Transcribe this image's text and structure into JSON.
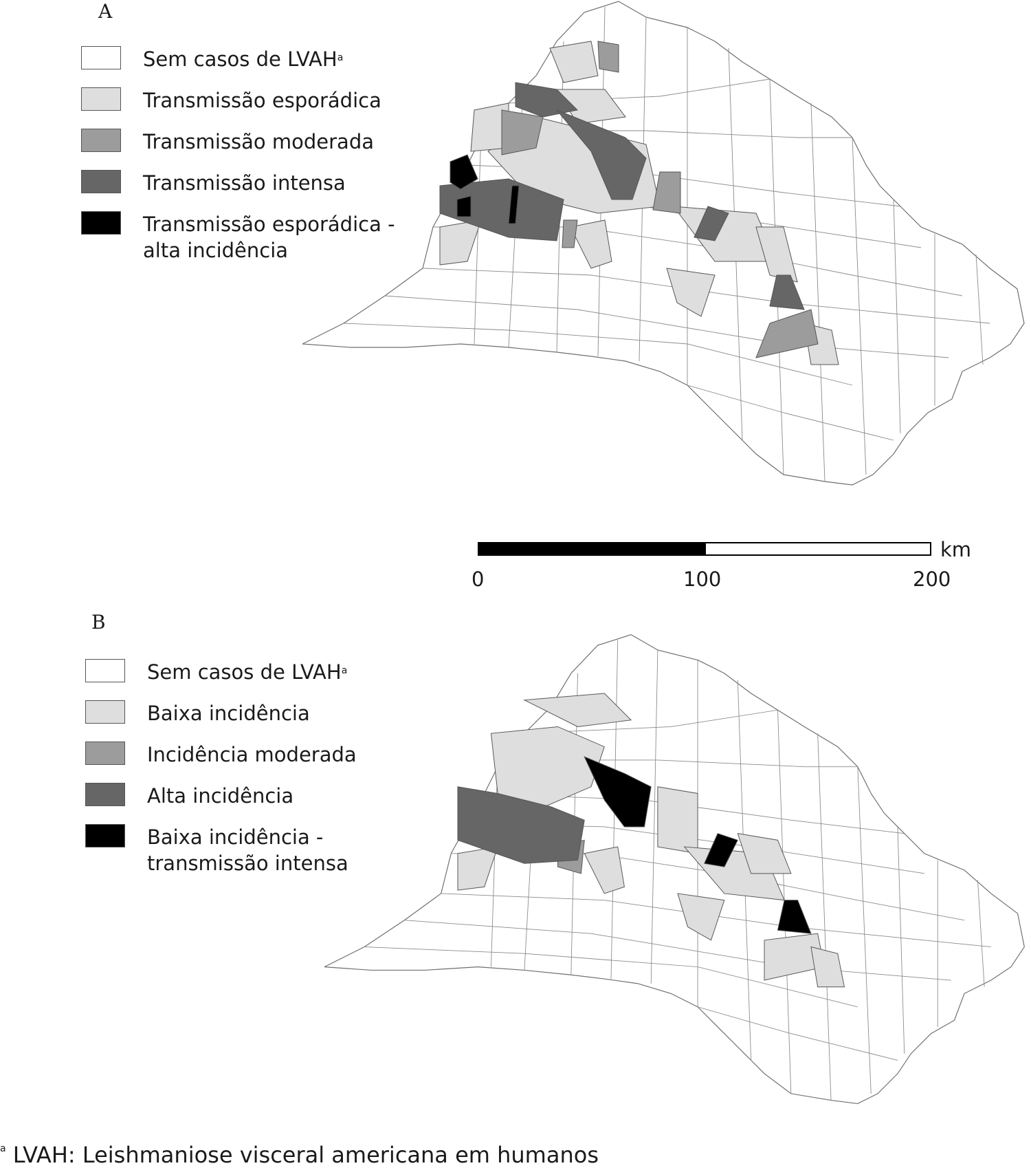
{
  "panels": [
    {
      "label": "A",
      "legend": [
        {
          "text": "Sem casos de LVAH",
          "sup": "a",
          "color": "#ffffff"
        },
        {
          "text": "Transmissão esporádica",
          "sup": "",
          "color": "#dedede"
        },
        {
          "text": "Transmissão moderada",
          "sup": "",
          "color": "#9c9c9c"
        },
        {
          "text": "Transmissão intensa",
          "sup": "",
          "color": "#666666"
        },
        {
          "text": "Transmissão esporádica -",
          "text2": "alta incidência",
          "sup": "",
          "color": "#000000"
        }
      ]
    },
    {
      "label": "B",
      "legend": [
        {
          "text": "Sem casos de LVAH",
          "sup": "a",
          "color": "#ffffff"
        },
        {
          "text": "Baixa incidência",
          "sup": "",
          "color": "#dedede"
        },
        {
          "text": "Incidência moderada",
          "sup": "",
          "color": "#9c9c9c"
        },
        {
          "text": "Alta incidência",
          "sup": "",
          "color": "#666666"
        },
        {
          "text": "Baixa incidência -",
          "text2": "transmissão intensa",
          "sup": "",
          "color": "#000000"
        }
      ]
    }
  ],
  "scale": {
    "unit": "km",
    "ticks": [
      "0",
      "100",
      "200"
    ]
  },
  "footnote": {
    "sup": "a",
    "text": "LVAH: Leishmaniose visceral americana em humanos"
  }
}
